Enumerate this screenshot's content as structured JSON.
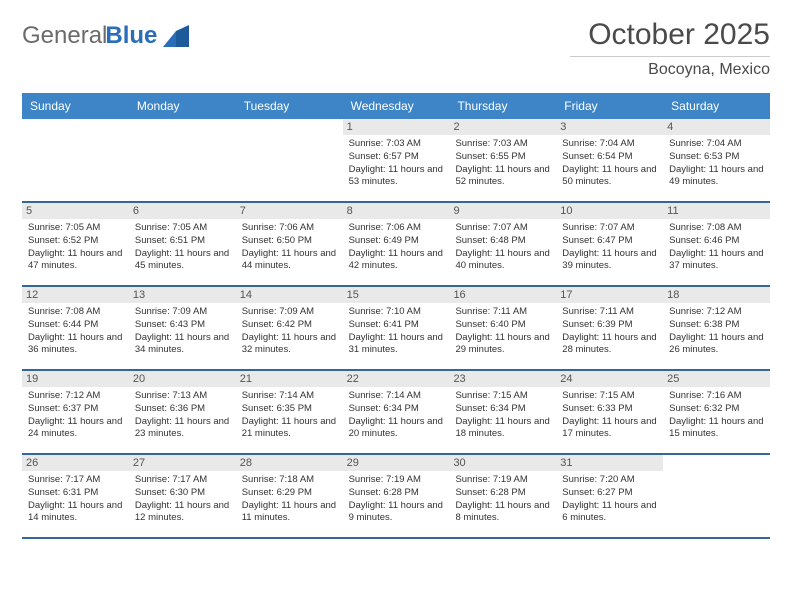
{
  "brand": {
    "general": "General",
    "blue": "Blue"
  },
  "title": "October 2025",
  "location": "Bocoyna, Mexico",
  "colors": {
    "header_bg": "#3d85c6",
    "header_text": "#ffffff",
    "daynum_bg": "#e9e9e9",
    "week_border": "#336699",
    "title_color": "#4a4a4a",
    "body_text": "#333333",
    "logo_gray": "#6b6b6b",
    "logo_blue": "#2a6db8"
  },
  "days_of_week": [
    "Sunday",
    "Monday",
    "Tuesday",
    "Wednesday",
    "Thursday",
    "Friday",
    "Saturday"
  ],
  "weeks": [
    [
      null,
      null,
      null,
      {
        "n": "1",
        "sr": "7:03 AM",
        "ss": "6:57 PM",
        "dl": "11 hours and 53 minutes."
      },
      {
        "n": "2",
        "sr": "7:03 AM",
        "ss": "6:55 PM",
        "dl": "11 hours and 52 minutes."
      },
      {
        "n": "3",
        "sr": "7:04 AM",
        "ss": "6:54 PM",
        "dl": "11 hours and 50 minutes."
      },
      {
        "n": "4",
        "sr": "7:04 AM",
        "ss": "6:53 PM",
        "dl": "11 hours and 49 minutes."
      }
    ],
    [
      {
        "n": "5",
        "sr": "7:05 AM",
        "ss": "6:52 PM",
        "dl": "11 hours and 47 minutes."
      },
      {
        "n": "6",
        "sr": "7:05 AM",
        "ss": "6:51 PM",
        "dl": "11 hours and 45 minutes."
      },
      {
        "n": "7",
        "sr": "7:06 AM",
        "ss": "6:50 PM",
        "dl": "11 hours and 44 minutes."
      },
      {
        "n": "8",
        "sr": "7:06 AM",
        "ss": "6:49 PM",
        "dl": "11 hours and 42 minutes."
      },
      {
        "n": "9",
        "sr": "7:07 AM",
        "ss": "6:48 PM",
        "dl": "11 hours and 40 minutes."
      },
      {
        "n": "10",
        "sr": "7:07 AM",
        "ss": "6:47 PM",
        "dl": "11 hours and 39 minutes."
      },
      {
        "n": "11",
        "sr": "7:08 AM",
        "ss": "6:46 PM",
        "dl": "11 hours and 37 minutes."
      }
    ],
    [
      {
        "n": "12",
        "sr": "7:08 AM",
        "ss": "6:44 PM",
        "dl": "11 hours and 36 minutes."
      },
      {
        "n": "13",
        "sr": "7:09 AM",
        "ss": "6:43 PM",
        "dl": "11 hours and 34 minutes."
      },
      {
        "n": "14",
        "sr": "7:09 AM",
        "ss": "6:42 PM",
        "dl": "11 hours and 32 minutes."
      },
      {
        "n": "15",
        "sr": "7:10 AM",
        "ss": "6:41 PM",
        "dl": "11 hours and 31 minutes."
      },
      {
        "n": "16",
        "sr": "7:11 AM",
        "ss": "6:40 PM",
        "dl": "11 hours and 29 minutes."
      },
      {
        "n": "17",
        "sr": "7:11 AM",
        "ss": "6:39 PM",
        "dl": "11 hours and 28 minutes."
      },
      {
        "n": "18",
        "sr": "7:12 AM",
        "ss": "6:38 PM",
        "dl": "11 hours and 26 minutes."
      }
    ],
    [
      {
        "n": "19",
        "sr": "7:12 AM",
        "ss": "6:37 PM",
        "dl": "11 hours and 24 minutes."
      },
      {
        "n": "20",
        "sr": "7:13 AM",
        "ss": "6:36 PM",
        "dl": "11 hours and 23 minutes."
      },
      {
        "n": "21",
        "sr": "7:14 AM",
        "ss": "6:35 PM",
        "dl": "11 hours and 21 minutes."
      },
      {
        "n": "22",
        "sr": "7:14 AM",
        "ss": "6:34 PM",
        "dl": "11 hours and 20 minutes."
      },
      {
        "n": "23",
        "sr": "7:15 AM",
        "ss": "6:34 PM",
        "dl": "11 hours and 18 minutes."
      },
      {
        "n": "24",
        "sr": "7:15 AM",
        "ss": "6:33 PM",
        "dl": "11 hours and 17 minutes."
      },
      {
        "n": "25",
        "sr": "7:16 AM",
        "ss": "6:32 PM",
        "dl": "11 hours and 15 minutes."
      }
    ],
    [
      {
        "n": "26",
        "sr": "7:17 AM",
        "ss": "6:31 PM",
        "dl": "11 hours and 14 minutes."
      },
      {
        "n": "27",
        "sr": "7:17 AM",
        "ss": "6:30 PM",
        "dl": "11 hours and 12 minutes."
      },
      {
        "n": "28",
        "sr": "7:18 AM",
        "ss": "6:29 PM",
        "dl": "11 hours and 11 minutes."
      },
      {
        "n": "29",
        "sr": "7:19 AM",
        "ss": "6:28 PM",
        "dl": "11 hours and 9 minutes."
      },
      {
        "n": "30",
        "sr": "7:19 AM",
        "ss": "6:28 PM",
        "dl": "11 hours and 8 minutes."
      },
      {
        "n": "31",
        "sr": "7:20 AM",
        "ss": "6:27 PM",
        "dl": "11 hours and 6 minutes."
      },
      null
    ]
  ],
  "labels": {
    "sunrise": "Sunrise:",
    "sunset": "Sunset:",
    "daylight": "Daylight:"
  }
}
